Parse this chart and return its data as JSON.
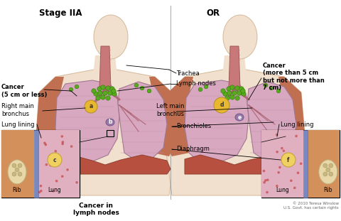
{
  "title": "Stage IIA",
  "title2": "OR",
  "bg_color": "#ffffff",
  "figsize": [
    4.8,
    3.11
  ],
  "dpi": 100,
  "body_color": "#f2e0ce",
  "body_edge": "#d4b898",
  "lung_color": "#d8a8c0",
  "lung_edge": "#a07890",
  "trachea_color": "#c87878",
  "trachea_edge": "#a05858",
  "lymph_color": "#5aaa20",
  "lymph_edge": "#2a7a00",
  "diaphragm_color": "#b85040",
  "diaphragm_edge": "#904030",
  "muscle_color": "#c07050",
  "cancer_a_color": "#e8b830",
  "cancer_d_color": "#e8b830",
  "cancer_be_color": "#9878a8",
  "cancer_cf_color": "#e8b830",
  "inset_lung_color": "#e0b0c0",
  "inset_rib_color": "#c89848",
  "inset_lining_color": "#8090c0",
  "inset_muscle_color": "#c07050",
  "labels": {
    "title": "Stage IIA",
    "title2": "OR",
    "cancer_left": "Cancer\n(5 cm or less)",
    "right_main_bronchus": "Right main\nbronchus",
    "lung_lining_left": "Lung lining",
    "rib_left": "Rib",
    "lung_left": "Lung",
    "cancer_in_lymph": "Cancer in\nlymph nodes",
    "trachea": "Trachea",
    "lymph_nodes": "Lymph nodes",
    "left_main_bronchus": "Left main\nbronchus",
    "bronchioles": "Bronchioles",
    "diaphragm": "Diaphragm",
    "cancer_right": "Cancer\n(more than 5 cm\nbut not more than\n7 cm)",
    "lung_lining_right": "Lung lining",
    "rib_right": "Rib",
    "lung_right": "Lung",
    "copyright": "© 2010 Teresa Winslow\nU.S. Govt. has certain rights"
  }
}
